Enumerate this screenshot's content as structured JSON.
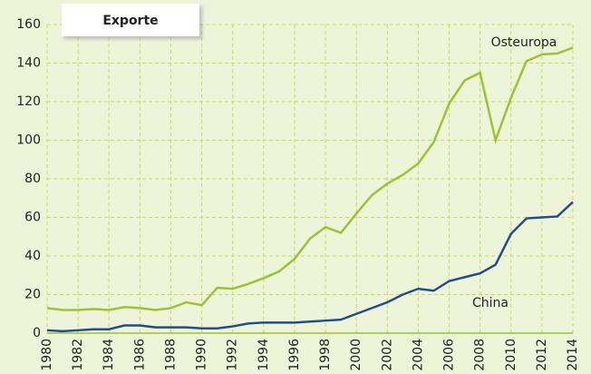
{
  "chart_data": {
    "type": "line",
    "title": "Exporte",
    "x": [
      1980,
      1981,
      1982,
      1983,
      1984,
      1985,
      1986,
      1987,
      1988,
      1989,
      1990,
      1991,
      1992,
      1993,
      1994,
      1995,
      1996,
      1997,
      1998,
      1999,
      2000,
      2001,
      2002,
      2003,
      2004,
      2005,
      2006,
      2007,
      2008,
      2009,
      2010,
      2011,
      2012,
      2013,
      2014
    ],
    "series": [
      {
        "name": "Osteuropa",
        "color": "#9dc232",
        "values": [
          13,
          12,
          12,
          12.5,
          12,
          13.5,
          13,
          12,
          13,
          16,
          14.5,
          23.5,
          23,
          25.5,
          28.5,
          32,
          38.5,
          49,
          55,
          52,
          62,
          71.5,
          77.5,
          82,
          88,
          99,
          119,
          131,
          135,
          100,
          122,
          141,
          144.5,
          145,
          148
        ]
      },
      {
        "name": "China",
        "color": "#1f4e8c",
        "values": [
          1.5,
          1,
          1.5,
          2,
          2,
          4,
          4,
          3,
          3,
          3,
          2.5,
          2.5,
          3.5,
          5,
          5.5,
          5.5,
          5.5,
          6,
          6.5,
          7,
          10,
          13,
          16,
          20,
          23,
          22,
          27,
          29,
          31,
          35.5,
          51.5,
          59.5,
          60,
          60.5,
          68
        ]
      }
    ],
    "xlim": [
      1980,
      2014
    ],
    "xticks": [
      1980,
      1982,
      1984,
      1986,
      1988,
      1990,
      1992,
      1994,
      1996,
      1998,
      2000,
      2002,
      2004,
      2006,
      2008,
      2010,
      2012,
      2014
    ],
    "ylim": [
      0,
      160
    ],
    "yticks": [
      0,
      20,
      40,
      60,
      80,
      100,
      120,
      140,
      160
    ],
    "grid": true
  }
}
